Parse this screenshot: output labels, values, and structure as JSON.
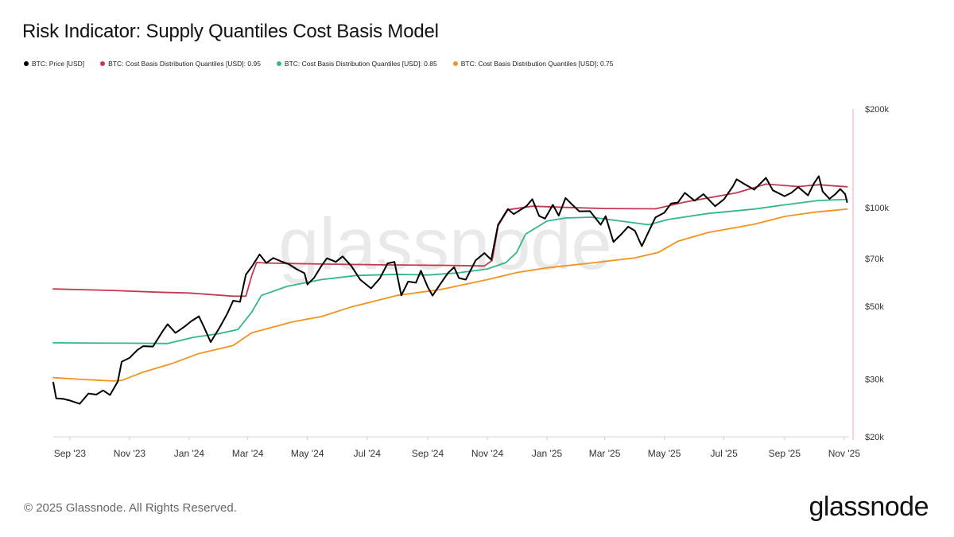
{
  "title": "Risk Indicator: Supply Quantiles Cost Basis Model",
  "watermark": "glassnode",
  "footer": "© 2025 Glassnode. All Rights Reserved.",
  "brand": "glassnode",
  "chart_data": {
    "type": "line",
    "title": "Risk Indicator: Supply Quantiles Cost Basis Model",
    "yscale": "log",
    "ylim": [
      20000,
      200000
    ],
    "xlim": [
      "2023-08-15",
      "2025-11-06"
    ],
    "y_ticks": [
      {
        "value": 200000,
        "label": "$200k"
      },
      {
        "value": 100000,
        "label": "$100k"
      },
      {
        "value": 70000,
        "label": "$70k"
      },
      {
        "value": 50000,
        "label": "$50k"
      },
      {
        "value": 30000,
        "label": "$30k"
      },
      {
        "value": 20000,
        "label": "$20k"
      }
    ],
    "x_ticks": [
      {
        "date": "2023-09-01",
        "label": "Sep '23"
      },
      {
        "date": "2023-11-01",
        "label": "Nov '23"
      },
      {
        "date": "2024-01-01",
        "label": "Jan '24"
      },
      {
        "date": "2024-03-01",
        "label": "Mar '24"
      },
      {
        "date": "2024-05-01",
        "label": "May '24"
      },
      {
        "date": "2024-07-01",
        "label": "Jul '24"
      },
      {
        "date": "2024-09-01",
        "label": "Sep '24"
      },
      {
        "date": "2024-11-01",
        "label": "Nov '24"
      },
      {
        "date": "2025-01-01",
        "label": "Jan '25"
      },
      {
        "date": "2025-03-01",
        "label": "Mar '25"
      },
      {
        "date": "2025-05-01",
        "label": "May '25"
      },
      {
        "date": "2025-07-01",
        "label": "Jul '25"
      },
      {
        "date": "2025-09-01",
        "label": "Sep '25"
      },
      {
        "date": "2025-11-01",
        "label": "Nov '25"
      }
    ],
    "legend_position": "top-left",
    "grid": false,
    "series": [
      {
        "name": "BTC: Price [USD]",
        "color": "#000000",
        "points": [
          [
            "2023-08-15",
            29300
          ],
          [
            "2023-08-18",
            26200
          ],
          [
            "2023-08-25",
            26100
          ],
          [
            "2023-09-01",
            25800
          ],
          [
            "2023-09-11",
            25200
          ],
          [
            "2023-09-20",
            27100
          ],
          [
            "2023-09-28",
            26900
          ],
          [
            "2023-10-05",
            27700
          ],
          [
            "2023-10-12",
            26800
          ],
          [
            "2023-10-20",
            29500
          ],
          [
            "2023-10-24",
            33900
          ],
          [
            "2023-11-01",
            34800
          ],
          [
            "2023-11-09",
            36800
          ],
          [
            "2023-11-15",
            37800
          ],
          [
            "2023-11-25",
            37700
          ],
          [
            "2023-12-05",
            42000
          ],
          [
            "2023-12-10",
            44100
          ],
          [
            "2023-12-18",
            41500
          ],
          [
            "2023-12-27",
            43300
          ],
          [
            "2024-01-03",
            45000
          ],
          [
            "2024-01-11",
            46600
          ],
          [
            "2024-01-17",
            42700
          ],
          [
            "2024-01-23",
            38900
          ],
          [
            "2024-02-01",
            43000
          ],
          [
            "2024-02-09",
            47500
          ],
          [
            "2024-02-15",
            52000
          ],
          [
            "2024-02-22",
            51600
          ],
          [
            "2024-02-28",
            62500
          ],
          [
            "2024-03-05",
            66000
          ],
          [
            "2024-03-13",
            72000
          ],
          [
            "2024-03-20",
            67800
          ],
          [
            "2024-03-27",
            70200
          ],
          [
            "2024-04-05",
            68400
          ],
          [
            "2024-04-12",
            67200
          ],
          [
            "2024-04-20",
            64900
          ],
          [
            "2024-04-28",
            63100
          ],
          [
            "2024-05-01",
            58300
          ],
          [
            "2024-05-08",
            61200
          ],
          [
            "2024-05-15",
            66200
          ],
          [
            "2024-05-21",
            70100
          ],
          [
            "2024-05-30",
            68300
          ],
          [
            "2024-06-06",
            71000
          ],
          [
            "2024-06-15",
            66300
          ],
          [
            "2024-06-24",
            60300
          ],
          [
            "2024-07-05",
            56700
          ],
          [
            "2024-07-14",
            60800
          ],
          [
            "2024-07-22",
            67600
          ],
          [
            "2024-07-29",
            68300
          ],
          [
            "2024-08-05",
            54000
          ],
          [
            "2024-08-12",
            59500
          ],
          [
            "2024-08-20",
            59000
          ],
          [
            "2024-08-25",
            64200
          ],
          [
            "2024-09-01",
            57300
          ],
          [
            "2024-09-06",
            53900
          ],
          [
            "2024-09-15",
            59100
          ],
          [
            "2024-09-22",
            63300
          ],
          [
            "2024-09-28",
            65800
          ],
          [
            "2024-10-03",
            61000
          ],
          [
            "2024-10-10",
            60300
          ],
          [
            "2024-10-20",
            69000
          ],
          [
            "2024-10-29",
            72700
          ],
          [
            "2024-11-05",
            69400
          ],
          [
            "2024-11-12",
            88700
          ],
          [
            "2024-11-22",
            99000
          ],
          [
            "2024-11-28",
            95600
          ],
          [
            "2024-12-05",
            98500
          ],
          [
            "2024-12-11",
            101100
          ],
          [
            "2024-12-17",
            106100
          ],
          [
            "2024-12-24",
            94300
          ],
          [
            "2024-12-30",
            92600
          ],
          [
            "2025-01-07",
            102000
          ],
          [
            "2025-01-13",
            94600
          ],
          [
            "2025-01-20",
            107000
          ],
          [
            "2025-01-27",
            102000
          ],
          [
            "2025-02-03",
            97500
          ],
          [
            "2025-02-14",
            97600
          ],
          [
            "2025-02-25",
            88700
          ],
          [
            "2025-03-02",
            94200
          ],
          [
            "2025-03-10",
            78600
          ],
          [
            "2025-03-18",
            83000
          ],
          [
            "2025-03-25",
            87500
          ],
          [
            "2025-04-01",
            85000
          ],
          [
            "2025-04-08",
            76300
          ],
          [
            "2025-04-15",
            84500
          ],
          [
            "2025-04-22",
            93400
          ],
          [
            "2025-05-01",
            96500
          ],
          [
            "2025-05-08",
            103000
          ],
          [
            "2025-05-15",
            103700
          ],
          [
            "2025-05-22",
            111000
          ],
          [
            "2025-06-01",
            105000
          ],
          [
            "2025-06-10",
            110000
          ],
          [
            "2025-06-22",
            101000
          ],
          [
            "2025-07-01",
            106000
          ],
          [
            "2025-07-10",
            116000
          ],
          [
            "2025-07-14",
            122000
          ],
          [
            "2025-07-22",
            118000
          ],
          [
            "2025-08-01",
            113500
          ],
          [
            "2025-08-13",
            123300
          ],
          [
            "2025-08-20",
            113000
          ],
          [
            "2025-09-01",
            108400
          ],
          [
            "2025-09-08",
            111000
          ],
          [
            "2025-09-15",
            115600
          ],
          [
            "2025-09-25",
            109000
          ],
          [
            "2025-10-01",
            118500
          ],
          [
            "2025-10-06",
            124700
          ],
          [
            "2025-10-10",
            112000
          ],
          [
            "2025-10-17",
            106400
          ],
          [
            "2025-10-23",
            110000
          ],
          [
            "2025-10-28",
            114000
          ],
          [
            "2025-11-02",
            110000
          ],
          [
            "2025-11-04",
            104000
          ]
        ]
      },
      {
        "name": "BTC: Cost Basis Distribution Quantiles [USD]: 0.95",
        "color": "#c23a4e",
        "points": [
          [
            "2023-08-15",
            56500
          ],
          [
            "2023-10-15",
            55900
          ],
          [
            "2023-12-01",
            55200
          ],
          [
            "2024-01-01",
            54900
          ],
          [
            "2024-02-15",
            53700
          ],
          [
            "2024-02-28",
            53700
          ],
          [
            "2024-03-05",
            62000
          ],
          [
            "2024-03-10",
            68000
          ],
          [
            "2024-03-20",
            67800
          ],
          [
            "2024-05-15",
            67300
          ],
          [
            "2024-07-15",
            66900
          ],
          [
            "2024-09-15",
            66700
          ],
          [
            "2024-10-29",
            66400
          ],
          [
            "2024-11-06",
            69000
          ],
          [
            "2024-11-12",
            88000
          ],
          [
            "2024-11-22",
            98500
          ],
          [
            "2024-12-17",
            101000
          ],
          [
            "2025-01-20",
            100200
          ],
          [
            "2025-03-01",
            99400
          ],
          [
            "2025-04-22",
            99200
          ],
          [
            "2025-05-22",
            104000
          ],
          [
            "2025-07-14",
            111000
          ],
          [
            "2025-08-13",
            118000
          ],
          [
            "2025-09-15",
            116000
          ],
          [
            "2025-10-06",
            117500
          ],
          [
            "2025-11-04",
            115800
          ]
        ]
      },
      {
        "name": "BTC: Cost Basis Distribution Quantiles [USD]: 0.85",
        "color": "#34b48f",
        "points": [
          [
            "2023-08-15",
            38700
          ],
          [
            "2023-11-01",
            38600
          ],
          [
            "2023-12-10",
            38500
          ],
          [
            "2024-01-05",
            40200
          ],
          [
            "2024-02-01",
            41300
          ],
          [
            "2024-02-20",
            42500
          ],
          [
            "2024-03-05",
            48000
          ],
          [
            "2024-03-15",
            54000
          ],
          [
            "2024-04-10",
            57500
          ],
          [
            "2024-05-15",
            60300
          ],
          [
            "2024-06-20",
            62100
          ],
          [
            "2024-08-01",
            62600
          ],
          [
            "2024-09-01",
            62300
          ],
          [
            "2024-10-01",
            63200
          ],
          [
            "2024-11-01",
            65000
          ],
          [
            "2024-11-20",
            68000
          ],
          [
            "2024-12-01",
            73000
          ],
          [
            "2024-12-10",
            83000
          ],
          [
            "2025-01-01",
            91000
          ],
          [
            "2025-01-20",
            93000
          ],
          [
            "2025-02-15",
            93500
          ],
          [
            "2025-03-15",
            91200
          ],
          [
            "2025-04-15",
            88700
          ],
          [
            "2025-05-05",
            92000
          ],
          [
            "2025-06-15",
            96000
          ],
          [
            "2025-08-01",
            99000
          ],
          [
            "2025-09-01",
            102000
          ],
          [
            "2025-10-06",
            105200
          ],
          [
            "2025-11-04",
            106000
          ]
        ]
      },
      {
        "name": "BTC: Cost Basis Distribution Quantiles [USD]: 0.75",
        "color": "#f2931f",
        "points": [
          [
            "2023-08-15",
            30300
          ],
          [
            "2023-09-15",
            29900
          ],
          [
            "2023-10-15",
            29600
          ],
          [
            "2023-10-24",
            29700
          ],
          [
            "2023-11-15",
            31500
          ],
          [
            "2023-12-15",
            33500
          ],
          [
            "2024-01-10",
            35800
          ],
          [
            "2024-02-15",
            38000
          ],
          [
            "2024-03-05",
            41500
          ],
          [
            "2024-04-15",
            44800
          ],
          [
            "2024-05-15",
            46500
          ],
          [
            "2024-06-15",
            49800
          ],
          [
            "2024-08-01",
            54000
          ],
          [
            "2024-09-15",
            56300
          ],
          [
            "2024-11-01",
            60300
          ],
          [
            "2024-12-01",
            63400
          ],
          [
            "2025-01-01",
            65500
          ],
          [
            "2025-02-15",
            67800
          ],
          [
            "2025-04-01",
            70300
          ],
          [
            "2025-04-25",
            73000
          ],
          [
            "2025-05-15",
            79000
          ],
          [
            "2025-06-15",
            84000
          ],
          [
            "2025-08-01",
            89000
          ],
          [
            "2025-09-01",
            94000
          ],
          [
            "2025-10-01",
            96800
          ],
          [
            "2025-11-04",
            99000
          ]
        ]
      }
    ]
  }
}
